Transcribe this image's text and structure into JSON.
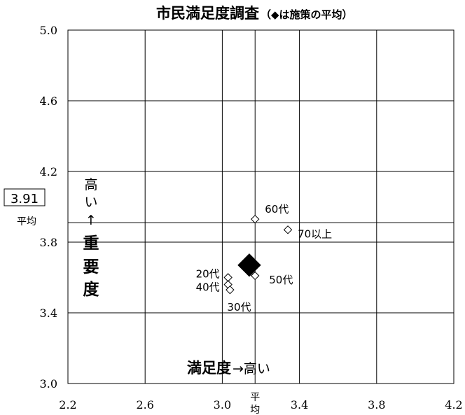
{
  "chart_data": {
    "type": "scatter",
    "title": "市民満足度調査",
    "subtitle": "（◆は施策の平均）",
    "x": {
      "min": 2.2,
      "max": 4.2,
      "ticks": [
        "2.2",
        "2.6",
        "3.0",
        "3.4",
        "3.8",
        "4.2"
      ],
      "tick_values": [
        2.2,
        2.6,
        3.0,
        3.4,
        3.8,
        4.2
      ],
      "average": 3.17,
      "average_label": "平均"
    },
    "y": {
      "min": 3.0,
      "max": 5.0,
      "ticks": [
        "5.0",
        "4.6",
        "4.2",
        "3.8",
        "3.4",
        "3.0"
      ],
      "tick_values": [
        5.0,
        4.6,
        4.2,
        3.8,
        3.4,
        3.0
      ],
      "average": 3.91,
      "average_label": "平均",
      "average_box": "3.91"
    },
    "grid": true,
    "axis_annotations": {
      "y": [
        "高",
        "い",
        "↑",
        "重",
        "要",
        "度"
      ],
      "x": [
        "満足度",
        "→高い"
      ]
    },
    "points": [
      {
        "label": "平均",
        "x": 3.14,
        "y": 3.67,
        "marker": "diamond-filled"
      },
      {
        "label": "60代",
        "x": 3.17,
        "y": 3.93,
        "marker": "diamond-open"
      },
      {
        "label": "70以上",
        "x": 3.34,
        "y": 3.87,
        "marker": "diamond-open"
      },
      {
        "label": "50代",
        "x": 3.17,
        "y": 3.61,
        "marker": "diamond-open"
      },
      {
        "label": "20代",
        "x": 3.03,
        "y": 3.6,
        "marker": "diamond-open"
      },
      {
        "label": "40代",
        "x": 3.03,
        "y": 3.56,
        "marker": "diamond-open"
      },
      {
        "label": "30代",
        "x": 3.04,
        "y": 3.53,
        "marker": "diamond-open"
      }
    ]
  }
}
